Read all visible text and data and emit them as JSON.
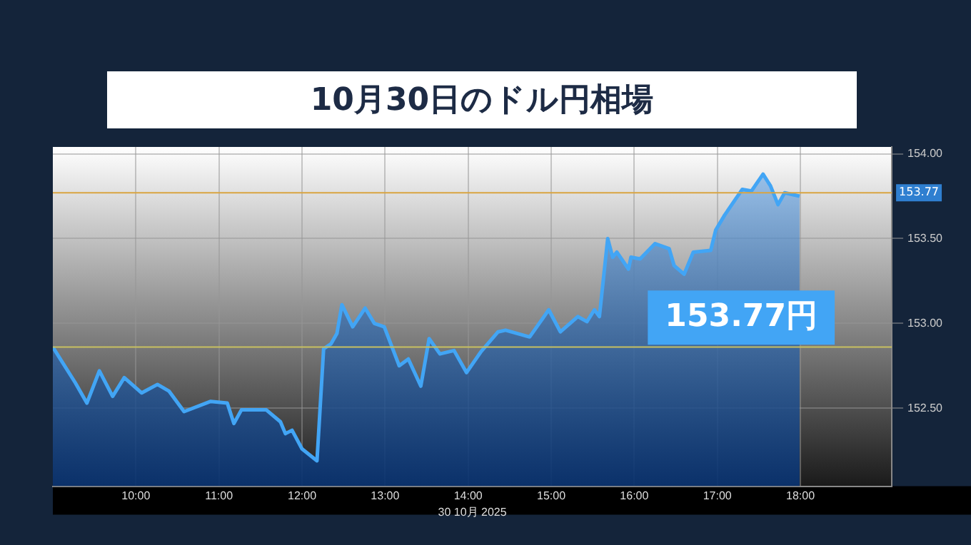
{
  "chart_data": {
    "type": "area",
    "title": "10月30日のドル円相場",
    "xlabel": "30 10月 2025",
    "x": [
      9.0,
      9.27,
      9.41,
      9.56,
      9.72,
      9.86,
      10.07,
      10.26,
      10.4,
      10.58,
      10.9,
      11.1,
      11.18,
      11.27,
      11.57,
      11.74,
      11.8,
      11.88,
      12.0,
      12.18,
      12.26,
      12.35,
      12.42,
      12.48,
      12.61,
      12.76,
      12.87,
      12.99,
      13.17,
      13.28,
      13.43,
      13.53,
      13.66,
      13.83,
      13.98,
      14.15,
      14.36,
      14.45,
      14.74,
      14.97,
      15.11,
      15.32,
      15.43,
      15.52,
      15.58,
      15.68,
      15.74,
      15.79,
      15.93,
      15.96,
      16.07,
      16.25,
      16.42,
      16.48,
      16.6,
      16.71,
      16.92,
      16.98,
      17.09,
      17.3,
      17.41,
      17.55,
      17.64,
      17.73,
      17.81,
      17.99
    ],
    "series": [
      {
        "color": "#42a5f5",
        "values": [
          152.86,
          152.65,
          152.53,
          152.72,
          152.57,
          152.68,
          152.59,
          152.64,
          152.6,
          152.48,
          152.54,
          152.53,
          152.41,
          152.49,
          152.49,
          152.42,
          152.35,
          152.37,
          152.26,
          152.19,
          152.85,
          152.88,
          152.94,
          153.11,
          152.98,
          153.09,
          153.0,
          152.98,
          152.75,
          152.79,
          152.63,
          152.91,
          152.82,
          152.84,
          152.71,
          152.83,
          152.95,
          152.96,
          152.92,
          153.08,
          152.95,
          153.04,
          153.01,
          153.08,
          153.04,
          153.5,
          153.39,
          153.42,
          153.32,
          153.39,
          153.38,
          153.47,
          153.44,
          153.34,
          153.29,
          153.42,
          153.43,
          153.55,
          153.64,
          153.79,
          153.78,
          153.88,
          153.81,
          153.7,
          153.77,
          153.75
        ]
      }
    ],
    "xlim": [
      9.0,
      19.1
    ],
    "xticks": [
      {
        "value": 10,
        "label": "10:00"
      },
      {
        "value": 11,
        "label": "11:00"
      },
      {
        "value": 12,
        "label": "12:00"
      },
      {
        "value": 13,
        "label": "13:00"
      },
      {
        "value": 14,
        "label": "14:00"
      },
      {
        "value": 15,
        "label": "15:00"
      },
      {
        "value": 16,
        "label": "16:00"
      },
      {
        "value": 17,
        "label": "17:00"
      },
      {
        "value": 18,
        "label": "18:00"
      }
    ],
    "ylim": [
      152.04,
      154.04
    ],
    "yticks": [
      {
        "value": 152.5,
        "label": "152.50"
      },
      {
        "value": 153,
        "label": "153.00"
      },
      {
        "value": 153.5,
        "label": "153.50"
      },
      {
        "value": 154,
        "label": "154.00"
      }
    ],
    "ref_lines": [
      {
        "axis": "y",
        "value": 153.77,
        "label": "153.77",
        "color": "#d9a441"
      },
      {
        "axis": "y",
        "value": 152.86,
        "color": "#c8c060"
      }
    ],
    "annotations": [
      "153.77円"
    ],
    "grid": true,
    "legend": false,
    "marker": "none",
    "line_style": "solid"
  }
}
